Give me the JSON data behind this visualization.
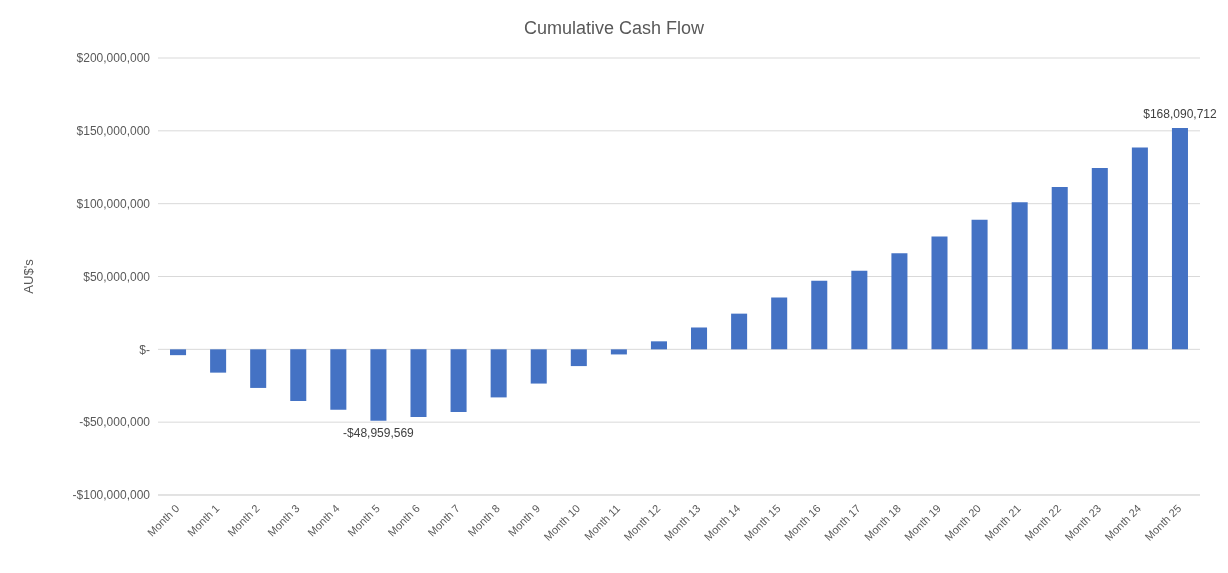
{
  "chart_data": {
    "type": "bar",
    "title": "Cumulative Cash Flow",
    "ylabel": "AU$'s",
    "categories": [
      "Month 0",
      "Month 1",
      "Month 2",
      "Month 3",
      "Month 4",
      "Month 5",
      "Month 6",
      "Month 7",
      "Month 8",
      "Month 9",
      "Month 10",
      "Month 11",
      "Month 12",
      "Month 13",
      "Month 14",
      "Month 15",
      "Month 16",
      "Month 17",
      "Month 18",
      "Month 19",
      "Month 20",
      "Month 21",
      "Month 22",
      "Month 23",
      "Month 24",
      "Month 25"
    ],
    "values": [
      -4000000,
      -16000000,
      -26500000,
      -35500000,
      -41500000,
      -48959569,
      -46500000,
      -43000000,
      -33000000,
      -23500000,
      -11500000,
      -3500000,
      5500000,
      15000000,
      24500000,
      35500000,
      47000000,
      54000000,
      66000000,
      77500000,
      89000000,
      101000000,
      111500000,
      124500000,
      138500000,
      152000000
    ],
    "value_labels": [
      null,
      null,
      null,
      null,
      null,
      "-$48,959,569",
      null,
      null,
      null,
      null,
      null,
      null,
      null,
      null,
      null,
      null,
      null,
      null,
      null,
      null,
      null,
      null,
      null,
      null,
      null,
      null
    ],
    "annotations": [
      {
        "text": "$168,090,712",
        "x": "Month 25",
        "y": 152000000
      }
    ],
    "color": "#4472c4",
    "ylim": [
      -100000000,
      200000000
    ],
    "yticks": [
      {
        "value": -100000000,
        "label": "-$100,000,000"
      },
      {
        "value": -50000000,
        "label": "-$50,000,000"
      },
      {
        "value": 0,
        "label": "$-"
      },
      {
        "value": 50000000,
        "label": "$50,000,000"
      },
      {
        "value": 100000000,
        "label": "$100,000,000"
      },
      {
        "value": 150000000,
        "label": "$150,000,000"
      },
      {
        "value": 200000000,
        "label": "$200,000,000"
      }
    ],
    "grid": "y",
    "legend": false
  }
}
